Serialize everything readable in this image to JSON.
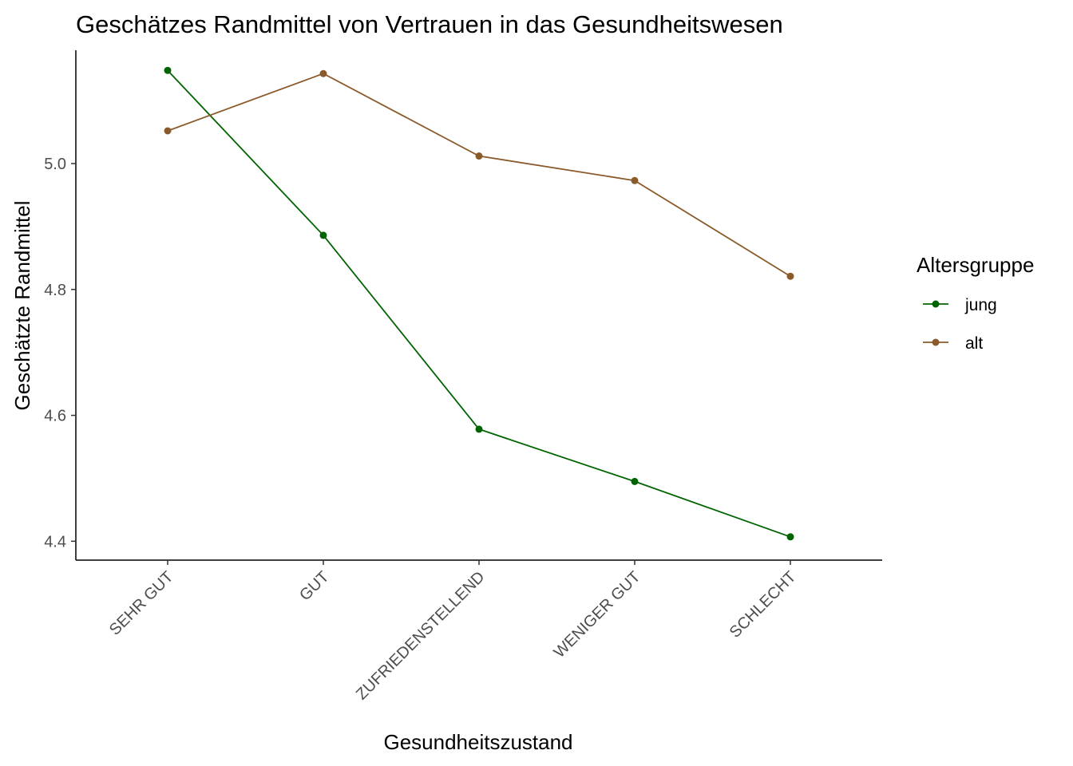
{
  "chart_data": {
    "type": "line",
    "title": "Geschätzes Randmittel von Vertrauen in das Gesundheitswesen",
    "xlabel": "Gesundheitszustand",
    "ylabel": "Geschätzte Randmittel",
    "categories": [
      "SEHR GUT",
      "GUT",
      "ZUFRIEDENSTELLEND",
      "WENIGER GUT",
      "SCHLECHT"
    ],
    "y_ticks": [
      4.4,
      4.6,
      4.8,
      5.0
    ],
    "y_tick_labels": [
      "4.4",
      "4.6",
      "4.8",
      "5.0"
    ],
    "ylim": [
      4.37,
      5.18
    ],
    "grid": false,
    "legend": {
      "title": "Altersgruppe",
      "position": "right"
    },
    "series": [
      {
        "name": "jung",
        "color": "#006400",
        "values": [
          5.148,
          4.886,
          4.578,
          4.495,
          4.407
        ]
      },
      {
        "name": "alt",
        "color": "#8B5A2B",
        "values": [
          5.052,
          5.143,
          5.012,
          4.973,
          4.821
        ]
      }
    ]
  }
}
